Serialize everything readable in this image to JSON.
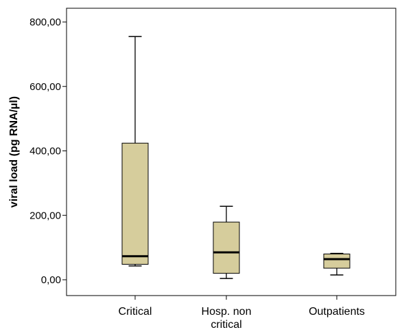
{
  "chart_data": {
    "type": "boxplot",
    "title": "",
    "xlabel": "",
    "ylabel": "viral load (pg RNA/µl)",
    "ylim": [
      -50,
      820
    ],
    "yticks": [
      0,
      200,
      400,
      600,
      800
    ],
    "ytick_labels": [
      "0,00",
      "200,00",
      "400,00",
      "600,00",
      "800,00"
    ],
    "categories": [
      {
        "lines": [
          "Critical"
        ]
      },
      {
        "lines": [
          "Hosp. non",
          "critical"
        ]
      },
      {
        "lines": [
          "Outpatients"
        ]
      }
    ],
    "boxes": [
      {
        "min": 43,
        "q1": 48,
        "median": 73,
        "q3": 424,
        "max": 755
      },
      {
        "min": 4,
        "q1": 20,
        "median": 85,
        "q3": 179,
        "max": 228
      },
      {
        "min": 15,
        "q1": 36,
        "median": 64,
        "q3": 80,
        "max": 82
      }
    ],
    "grid": false,
    "colors": {
      "box_fill": "#d6cd9c",
      "line": "#000000"
    }
  }
}
